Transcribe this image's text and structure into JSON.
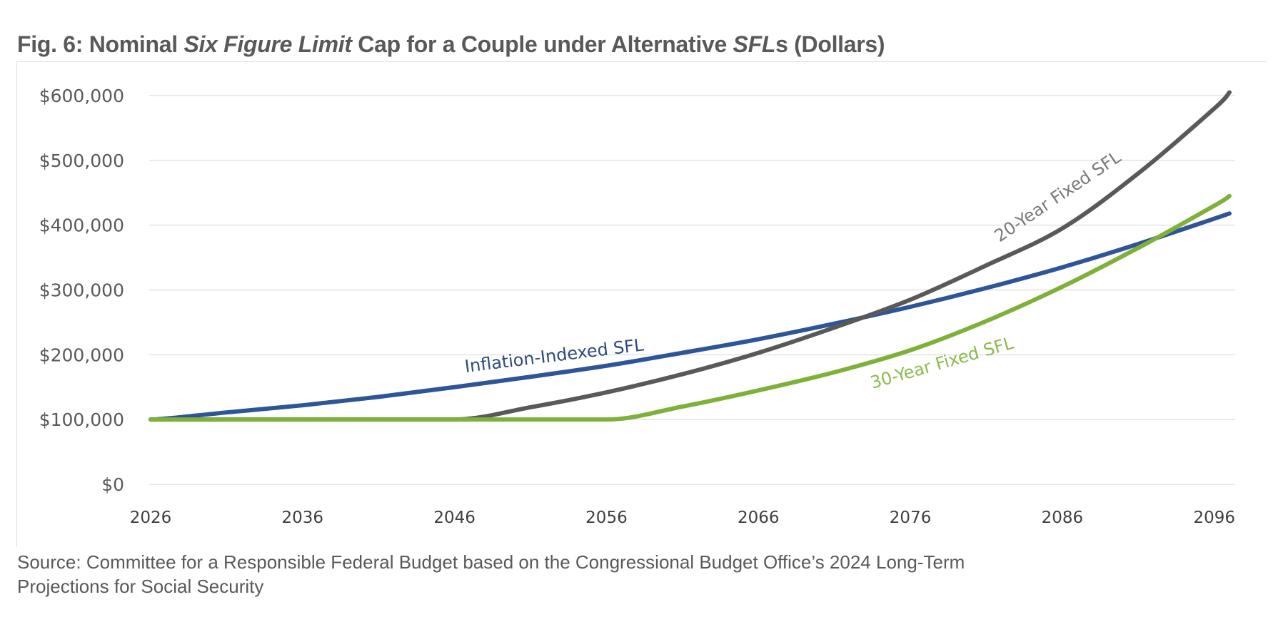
{
  "title": {
    "prefix": "Fig. 6: Nominal ",
    "italic1": "Six Figure Limit",
    "middle": " Cap for a Couple under Alternative ",
    "italic2": "SFL",
    "suffix": "s (Dollars)"
  },
  "source": {
    "line1": "Source: Committee for a Responsible Federal Budget based on the Congressional Budget Office’s 2024 Long-Term",
    "line2": "Projections for Social Security"
  },
  "chart_data": {
    "type": "line",
    "title": "Fig. 6: Nominal Six Figure Limit Cap for a Couple under Alternative SFLs (Dollars)",
    "xlabel": "",
    "ylabel": "",
    "xlim": [
      2026,
      2097
    ],
    "ylim": [
      0,
      600000
    ],
    "grid": true,
    "legend": "inline labels",
    "x_ticks": [
      "2026",
      "2036",
      "2046",
      "2056",
      "2066",
      "2076",
      "2086",
      "2096"
    ],
    "y_ticks": [
      "$0",
      "$100,000",
      "$200,000",
      "$300,000",
      "$400,000",
      "$500,000",
      "$600,000"
    ],
    "x": [
      2026,
      2031,
      2036,
      2041,
      2046,
      2051,
      2056,
      2061,
      2066,
      2071,
      2076,
      2081,
      2086,
      2091,
      2096,
      2097
    ],
    "series": [
      {
        "name": "Inflation-Indexed SFL",
        "color": "#2E5597",
        "values": [
          100000,
          111000,
          122000,
          135000,
          150000,
          166000,
          183000,
          203000,
          224000,
          248000,
          274000,
          303000,
          335000,
          371000,
          410000,
          418000
        ]
      },
      {
        "name": "20-Year Fixed SFL",
        "color": "#595959",
        "values": [
          100000,
          100000,
          100000,
          100000,
          100000,
          119000,
          142000,
          170000,
          203000,
          242000,
          285000,
          338000,
          395000,
          480000,
          580000,
          605000
        ]
      },
      {
        "name": "30-Year Fixed SFL",
        "color": "#7FB13A",
        "values": [
          100000,
          100000,
          100000,
          100000,
          100000,
          100000,
          100000,
          120000,
          145000,
          173000,
          207000,
          252000,
          305000,
          365000,
          430000,
          445000
        ]
      }
    ]
  }
}
